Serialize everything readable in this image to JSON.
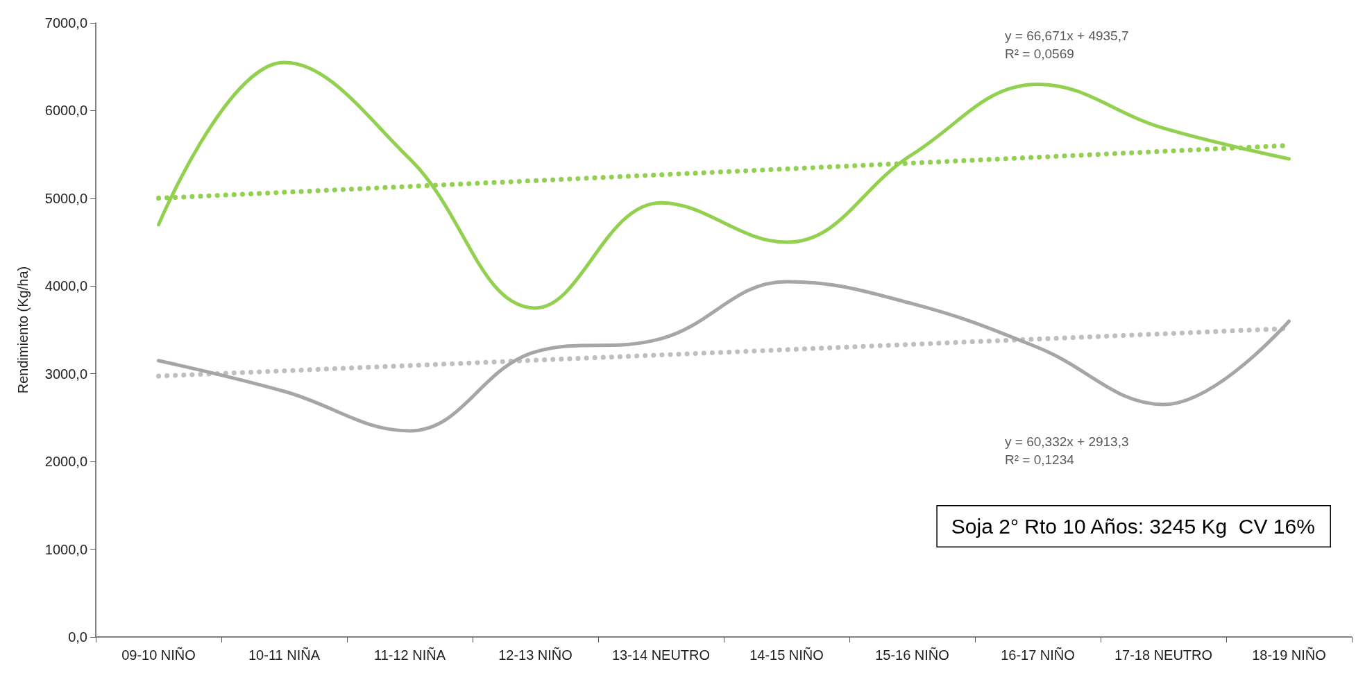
{
  "chart_data": {
    "type": "line",
    "ylabel": "Rendimiento (Kg/ha)",
    "categories": [
      "09-10 NIÑO",
      "10-11 NIÑA",
      "11-12 NIÑA",
      "12-13 NIÑO",
      "13-14 NEUTRO",
      "14-15 NIÑO",
      "15-16 NIÑO",
      "16-17 NIÑO",
      "17-18 NEUTRO",
      "18-19 NIÑO"
    ],
    "series": [
      {
        "color": "#92d050",
        "line_style": "solid",
        "values": [
          4700,
          6550,
          5450,
          3750,
          4950,
          4500,
          5500,
          6300,
          5800,
          5450
        ]
      },
      {
        "color": "#a6a6a6",
        "line_style": "solid",
        "values": [
          3150,
          2800,
          2350,
          3250,
          3400,
          4050,
          3800,
          3300,
          2650,
          3600
        ]
      },
      {
        "color": "#92d050",
        "line_style": "dotted",
        "values": [
          5002,
          5069,
          5136,
          5202,
          5269,
          5336,
          5402,
          5469,
          5536,
          5603
        ]
      },
      {
        "color": "#bfbfbf",
        "line_style": "dotted",
        "values": [
          2974,
          3034,
          3094,
          3155,
          3215,
          3275,
          3336,
          3396,
          3456,
          3517
        ]
      }
    ],
    "ylim": [
      0,
      7000
    ],
    "yticks": [
      {
        "value": 0,
        "label": "0,0"
      },
      {
        "value": 1000,
        "label": "1000,0"
      },
      {
        "value": 2000,
        "label": "2000,0"
      },
      {
        "value": 3000,
        "label": "3000,0"
      },
      {
        "value": 4000,
        "label": "4000,0"
      },
      {
        "value": 5000,
        "label": "5000,0"
      },
      {
        "value": 6000,
        "label": "6000,0"
      },
      {
        "value": 7000,
        "label": "7000,0"
      }
    ],
    "grid": false,
    "marker": "none",
    "annotations": [
      "y = 66,671x + 4935,7\nR² = 0,0569",
      "y = 60,332x + 2913,3\nR² = 0,1234",
      "Soja 2° Rto 10 Años: 3245 Kg  CV 16%"
    ]
  }
}
